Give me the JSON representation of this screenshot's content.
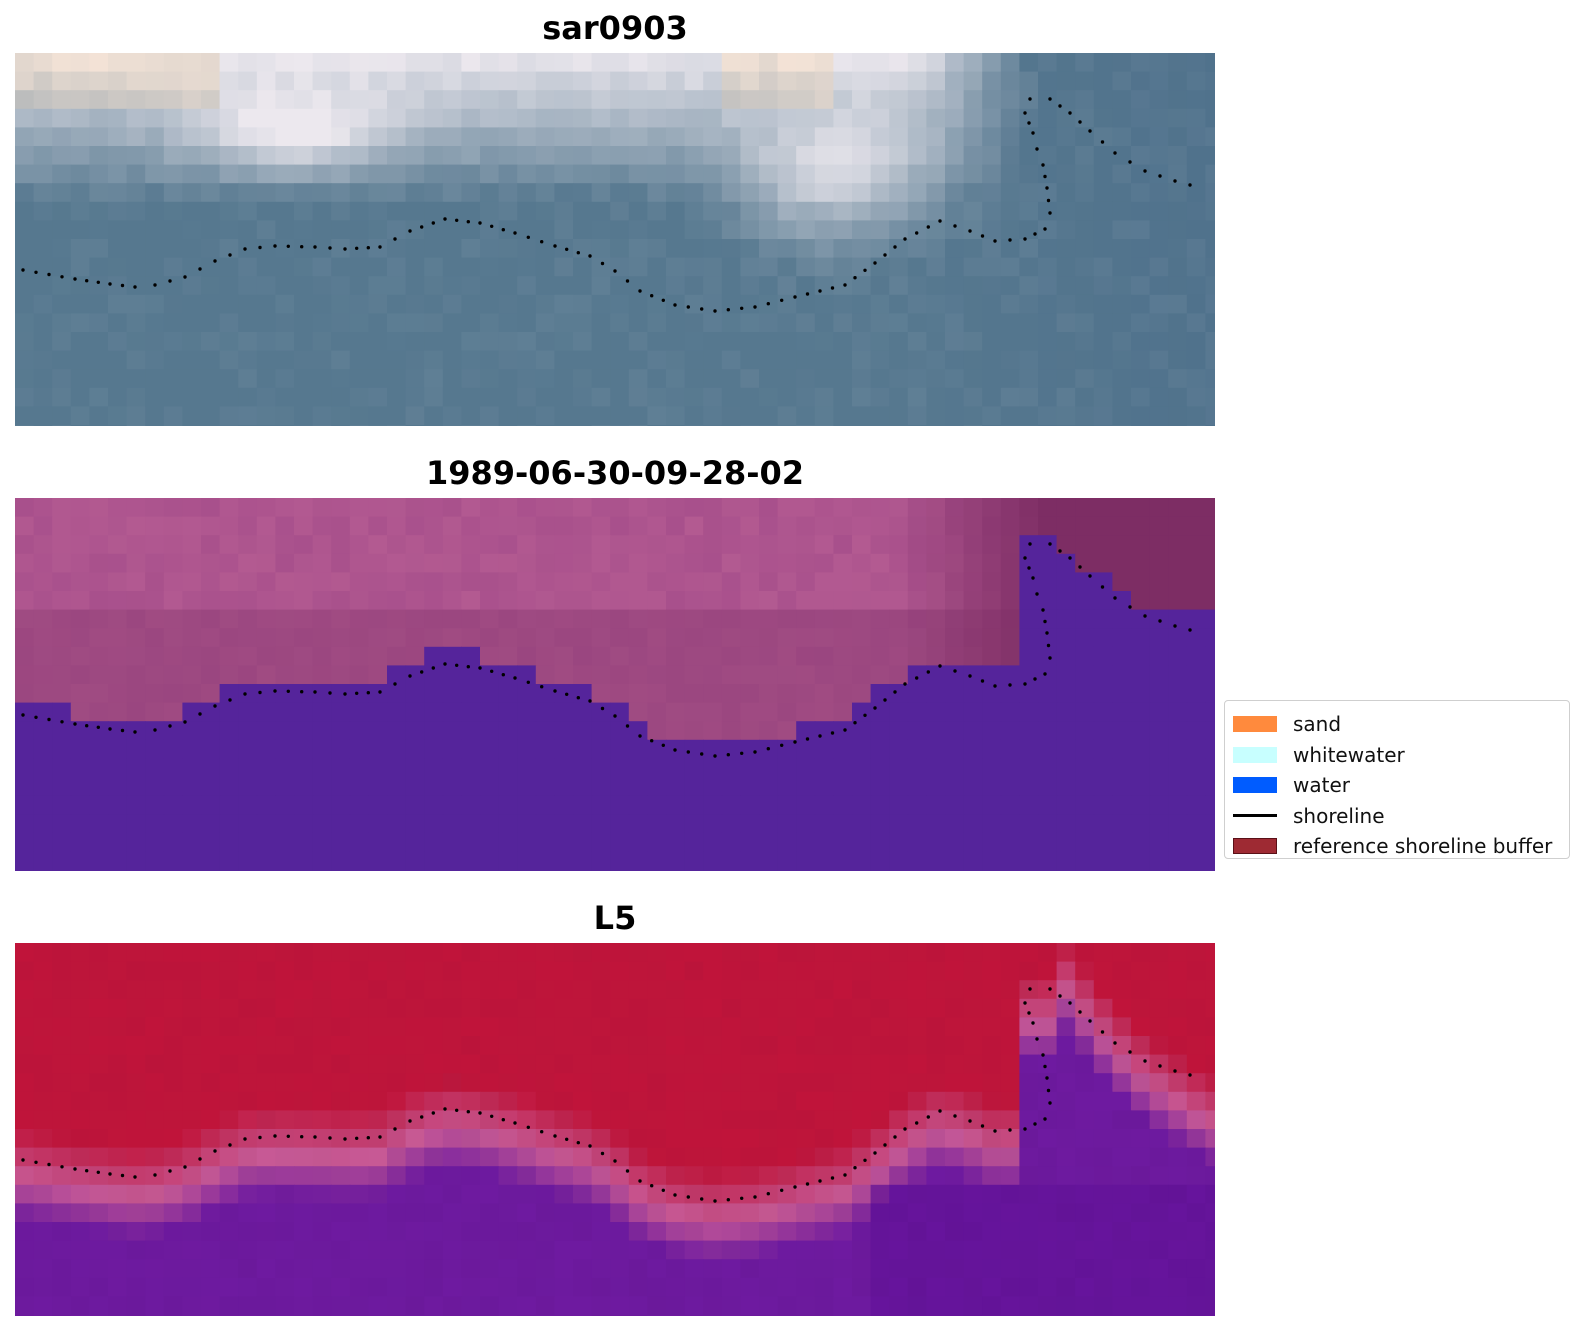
{
  "panels": [
    {
      "title": "sar0903",
      "style": "rgb"
    },
    {
      "title": "1989-06-30-09-28-02",
      "style": "class"
    },
    {
      "title": "L5",
      "style": "prob"
    }
  ],
  "legend": {
    "items": [
      {
        "label": "sand",
        "color": "#ff8a3d",
        "kind": "patch"
      },
      {
        "label": "whitewater",
        "color": "#c8ffff",
        "kind": "patch"
      },
      {
        "label": "water",
        "color": "#005cff",
        "kind": "patch"
      },
      {
        "label": "shoreline",
        "color": "#000000",
        "kind": "line"
      },
      {
        "label": "reference shoreline buffer",
        "color": "#9e2a33",
        "kind": "patch"
      }
    ]
  },
  "colors": {
    "water_class": "#55249b",
    "land_class_mauve": "#a24d8c",
    "land_prob_red": "#c0143a",
    "water_prob_purple": "#6a1aa0",
    "rgb_water": "#56788f",
    "rgb_cloud": "#e9e4ea",
    "shoreline_dots": "#000000"
  }
}
